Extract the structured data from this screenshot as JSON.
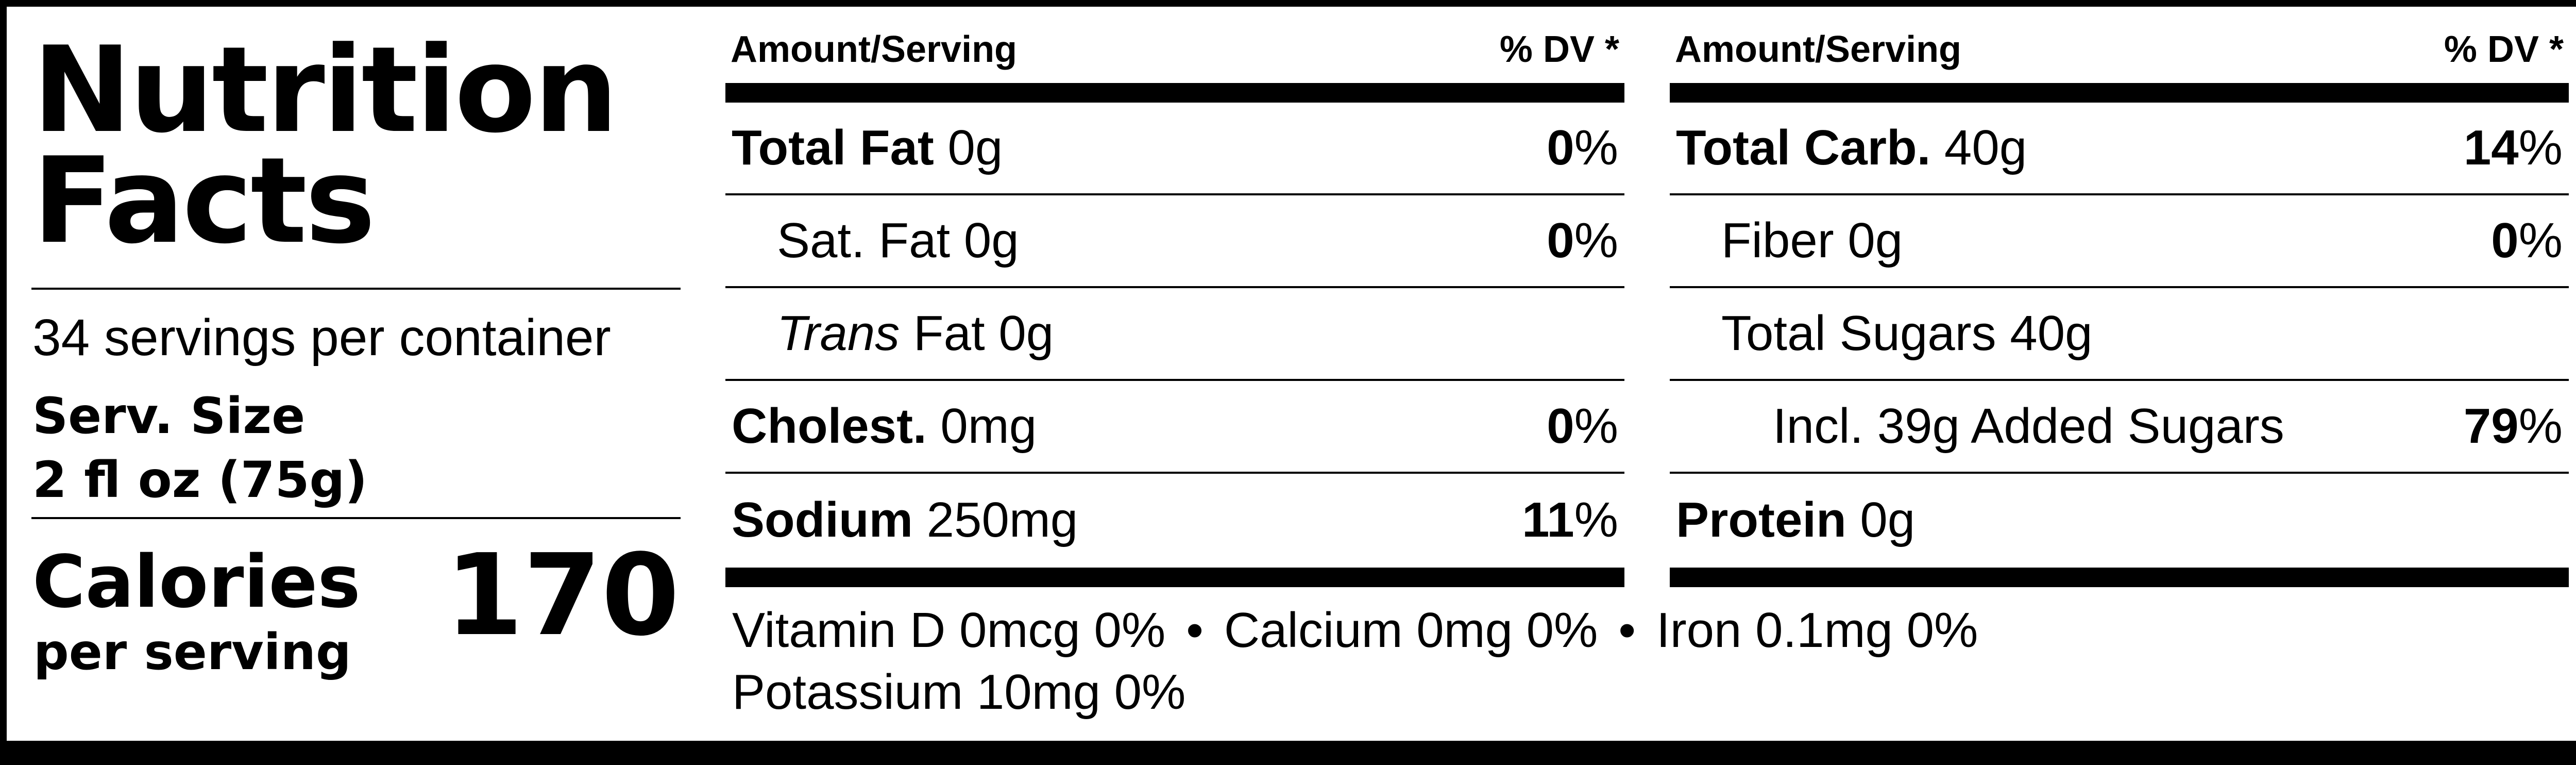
{
  "left": {
    "title_line1": "Nutrition",
    "title_line2": "Facts",
    "servings": "34 servings per container",
    "serv_size_label": "Serv. Size",
    "serv_size_value": "2 fl oz (75g)",
    "calories_label": "Calories",
    "per_serving": "per serving",
    "calories_value": "170"
  },
  "col1": {
    "amount_header": "Amount/Serving",
    "dv_header": "% DV *",
    "rows": [
      {
        "name": "Total Fat",
        "amount": "0g",
        "dv_num": "0",
        "dv_sign": "%"
      },
      {
        "name": "Sat. Fat",
        "amount": "0g",
        "dv_num": "0",
        "dv_sign": "%"
      },
      {
        "name": "Trans",
        "amount": "Fat 0g"
      },
      {
        "name": "Cholest.",
        "amount": "0mg",
        "dv_num": "0",
        "dv_sign": "%"
      },
      {
        "name": "Sodium",
        "amount": "250mg",
        "dv_num": "11",
        "dv_sign": "%"
      }
    ]
  },
  "col2": {
    "amount_header": "Amount/Serving",
    "dv_header": "% DV *",
    "rows": [
      {
        "name": "Total Carb.",
        "amount": "40g",
        "dv_num": "14",
        "dv_sign": "%"
      },
      {
        "name": "Fiber",
        "amount": "0g",
        "dv_num": "0",
        "dv_sign": "%"
      },
      {
        "name": "Total Sugars",
        "amount": "40g"
      },
      {
        "name": "Incl. 39g Added Sugars",
        "dv_num": "79",
        "dv_sign": "%"
      },
      {
        "name": "Protein",
        "amount": "0g"
      }
    ]
  },
  "footer": {
    "vitamin_d": "Vitamin D 0mcg 0%",
    "calcium": "Calcium 0mg 0%",
    "iron": "Iron 0.1mg 0%",
    "potassium": "Potassium 10mg 0%",
    "separator": "•"
  }
}
